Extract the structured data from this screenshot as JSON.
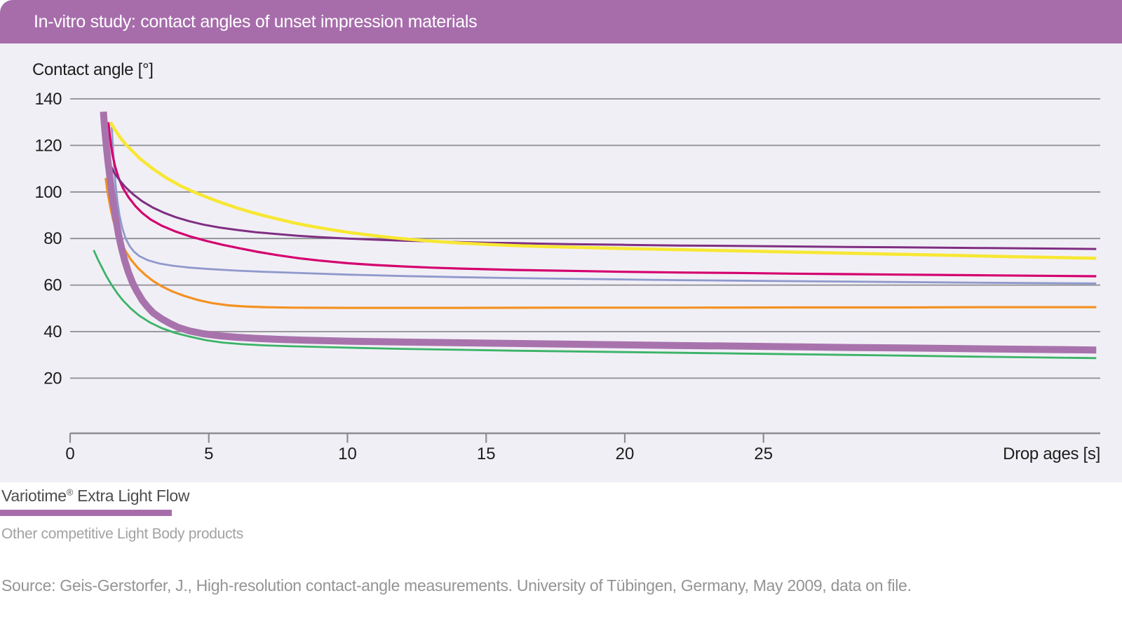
{
  "header": {
    "title": "In-vitro study: contact angles of unset impression materials",
    "bg_color": "#a76dab",
    "text_color": "#ffffff"
  },
  "chart_data": {
    "type": "line",
    "title": "In-vitro study: contact angles of unset impression materials",
    "xlabel": "Drop ages [s]",
    "ylabel": "Contact angle [°]",
    "x_ticks": [
      0,
      5,
      10,
      15,
      20,
      25
    ],
    "y_ticks": [
      140,
      120,
      100,
      80,
      60,
      40,
      20
    ],
    "xlim": [
      0,
      37.1
    ],
    "ylim": [
      0,
      145
    ],
    "grid": "horizontal",
    "legend_position": "below",
    "plot_bg": "#f1eff6",
    "grid_color": "#8d8d91",
    "axis_color": "#8d8d91",
    "tick_label_color": "#1d1d1b",
    "series": [
      {
        "id": "competitor-green",
        "color": "#3bb367",
        "stroke_width": 2.8,
        "points": [
          [
            0.85,
            75
          ],
          [
            1.0,
            71
          ],
          [
            1.15,
            67.5
          ],
          [
            1.3,
            64
          ],
          [
            1.5,
            60
          ],
          [
            1.7,
            56.5
          ],
          [
            1.9,
            53.5
          ],
          [
            2.2,
            49.8
          ],
          [
            2.5,
            46.8
          ],
          [
            2.9,
            43.8
          ],
          [
            3.3,
            41.5
          ],
          [
            3.8,
            39.4
          ],
          [
            4.3,
            37.9
          ],
          [
            4.9,
            36.3
          ],
          [
            5.5,
            35.3
          ],
          [
            6.2,
            34.6
          ],
          [
            7,
            34.1
          ],
          [
            8,
            33.7
          ],
          [
            9,
            33.4
          ],
          [
            10,
            33.1
          ],
          [
            12,
            32.6
          ],
          [
            14,
            32.2
          ],
          [
            16,
            31.8
          ],
          [
            18,
            31.5
          ],
          [
            20,
            31.2
          ],
          [
            22,
            30.9
          ],
          [
            24,
            30.6
          ],
          [
            26,
            30.3
          ],
          [
            28,
            30.0
          ],
          [
            30,
            29.7
          ],
          [
            33,
            29.2
          ],
          [
            37,
            28.6
          ]
        ]
      },
      {
        "id": "competitor-orange",
        "color": "#f39222",
        "stroke_width": 3.2,
        "points": [
          [
            1.28,
            106
          ],
          [
            1.35,
            100
          ],
          [
            1.45,
            93.5
          ],
          [
            1.55,
            88
          ],
          [
            1.7,
            82.5
          ],
          [
            1.85,
            78
          ],
          [
            2.0,
            74.5
          ],
          [
            2.2,
            70.8
          ],
          [
            2.45,
            67.3
          ],
          [
            2.7,
            64.5
          ],
          [
            3.0,
            61.7
          ],
          [
            3.3,
            59.5
          ],
          [
            3.7,
            57.2
          ],
          [
            4.1,
            55.4
          ],
          [
            4.6,
            53.6
          ],
          [
            5.1,
            52.3
          ],
          [
            5.7,
            51.3
          ],
          [
            6.3,
            50.8
          ],
          [
            7,
            50.5
          ],
          [
            8,
            50.3
          ],
          [
            10,
            50.2
          ],
          [
            14,
            50.2
          ],
          [
            18,
            50.3
          ],
          [
            22,
            50.3
          ],
          [
            26,
            50.4
          ],
          [
            30,
            50.4
          ],
          [
            33,
            50.5
          ],
          [
            37,
            50.5
          ]
        ]
      },
      {
        "id": "competitor-periwinkle",
        "color": "#8f99cc",
        "stroke_width": 2.8,
        "points": [
          [
            1.5,
            128
          ],
          [
            1.54,
            120
          ],
          [
            1.58,
            112
          ],
          [
            1.63,
            104
          ],
          [
            1.7,
            96.5
          ],
          [
            1.78,
            90
          ],
          [
            1.88,
            84.5
          ],
          [
            2.0,
            80
          ],
          [
            2.15,
            76.7
          ],
          [
            2.3,
            74.4
          ],
          [
            2.5,
            72.4
          ],
          [
            2.8,
            70.7
          ],
          [
            3.2,
            69.3
          ],
          [
            3.7,
            68.3
          ],
          [
            4.3,
            67.5
          ],
          [
            5,
            66.9
          ],
          [
            6,
            66.2
          ],
          [
            7,
            65.7
          ],
          [
            8,
            65.3
          ],
          [
            10,
            64.5
          ],
          [
            12,
            63.9
          ],
          [
            14,
            63.4
          ],
          [
            16,
            63.0
          ],
          [
            18,
            62.7
          ],
          [
            20,
            62.4
          ],
          [
            22,
            62.1
          ],
          [
            24,
            61.9
          ],
          [
            26,
            61.7
          ],
          [
            28,
            61.5
          ],
          [
            30,
            61.3
          ],
          [
            33,
            61.0
          ],
          [
            37,
            60.7
          ]
        ]
      },
      {
        "id": "competitor-magenta",
        "color": "#d4006e",
        "stroke_width": 3.2,
        "points": [
          [
            1.38,
            130
          ],
          [
            1.44,
            123
          ],
          [
            1.52,
            116.5
          ],
          [
            1.62,
            111
          ],
          [
            1.75,
            106
          ],
          [
            1.9,
            101.8
          ],
          [
            2.1,
            97.8
          ],
          [
            2.35,
            94
          ],
          [
            2.6,
            91
          ],
          [
            2.9,
            88.2
          ],
          [
            3.3,
            85.5
          ],
          [
            3.8,
            83
          ],
          [
            4.3,
            81
          ],
          [
            4.9,
            79
          ],
          [
            5.5,
            77.3
          ],
          [
            6.1,
            75.8
          ],
          [
            6.8,
            74.2
          ],
          [
            7.5,
            72.8
          ],
          [
            8.2,
            71.6
          ],
          [
            9,
            70.5
          ],
          [
            10,
            69.4
          ],
          [
            11,
            68.6
          ],
          [
            12,
            68.0
          ],
          [
            13,
            67.5
          ],
          [
            14,
            67.1
          ],
          [
            16,
            66.5
          ],
          [
            18,
            66.1
          ],
          [
            20,
            65.7
          ],
          [
            22,
            65.4
          ],
          [
            24,
            65.2
          ],
          [
            26,
            64.9
          ],
          [
            28,
            64.7
          ],
          [
            30,
            64.5
          ],
          [
            33,
            64.2
          ],
          [
            37,
            63.8
          ]
        ]
      },
      {
        "id": "competitor-dark-purple",
        "color": "#7f2e82",
        "stroke_width": 3.0,
        "points": [
          [
            1.32,
            115
          ],
          [
            1.45,
            111.5
          ],
          [
            1.6,
            108
          ],
          [
            1.8,
            104.8
          ],
          [
            2.0,
            102
          ],
          [
            2.3,
            98.7
          ],
          [
            2.6,
            96
          ],
          [
            3.0,
            93.2
          ],
          [
            3.4,
            91
          ],
          [
            3.8,
            89.2
          ],
          [
            4.3,
            87.4
          ],
          [
            4.8,
            86
          ],
          [
            5.4,
            84.7
          ],
          [
            6,
            83.7
          ],
          [
            6.7,
            82.7
          ],
          [
            7.4,
            82.0
          ],
          [
            8.2,
            81.2
          ],
          [
            9,
            80.6
          ],
          [
            10,
            80.0
          ],
          [
            11,
            79.5
          ],
          [
            12,
            79.1
          ],
          [
            13,
            78.8
          ],
          [
            14,
            78.5
          ],
          [
            15,
            78.2
          ],
          [
            16,
            78.0
          ],
          [
            18,
            77.6
          ],
          [
            20,
            77.3
          ],
          [
            22,
            77.0
          ],
          [
            24,
            76.8
          ],
          [
            26,
            76.6
          ],
          [
            28,
            76.4
          ],
          [
            30,
            76.2
          ],
          [
            33,
            75.9
          ],
          [
            37,
            75.5
          ]
        ]
      },
      {
        "id": "competitor-yellow",
        "color": "#f7e733",
        "stroke_width": 4.5,
        "points": [
          [
            1.45,
            130
          ],
          [
            1.6,
            127
          ],
          [
            1.8,
            123.5
          ],
          [
            2.0,
            120.5
          ],
          [
            2.5,
            114.5
          ],
          [
            3.0,
            109.8
          ],
          [
            3.5,
            105.8
          ],
          [
            4.0,
            102.5
          ],
          [
            4.5,
            99.8
          ],
          [
            5.0,
            97.4
          ],
          [
            5.5,
            95.2
          ],
          [
            6.0,
            93.2
          ],
          [
            6.5,
            91.4
          ],
          [
            7.0,
            89.8
          ],
          [
            7.5,
            88.3
          ],
          [
            8.0,
            86.9
          ],
          [
            8.5,
            85.7
          ],
          [
            9.0,
            84.6
          ],
          [
            9.5,
            83.6
          ],
          [
            10,
            82.7
          ],
          [
            10.5,
            81.9
          ],
          [
            11,
            81.2
          ],
          [
            11.5,
            80.5
          ],
          [
            12,
            79.9
          ],
          [
            13,
            78.9
          ],
          [
            14,
            78.1
          ],
          [
            15,
            77.5
          ],
          [
            16,
            77.0
          ],
          [
            17,
            76.6
          ],
          [
            18,
            76.3
          ],
          [
            20,
            75.7
          ],
          [
            22,
            75.2
          ],
          [
            24,
            74.7
          ],
          [
            26,
            74.2
          ],
          [
            28,
            73.7
          ],
          [
            30,
            73.2
          ],
          [
            32,
            72.7
          ],
          [
            34,
            72.2
          ],
          [
            37,
            71.5
          ]
        ]
      },
      {
        "id": "variotime-extra-light-flow",
        "color": "#a873ac",
        "stroke_width": 10,
        "points": [
          [
            1.2,
            134.5
          ],
          [
            1.22,
            131
          ],
          [
            1.25,
            127
          ],
          [
            1.28,
            123
          ],
          [
            1.32,
            118
          ],
          [
            1.37,
            112.5
          ],
          [
            1.43,
            106.5
          ],
          [
            1.5,
            100
          ],
          [
            1.58,
            93.5
          ],
          [
            1.66,
            87.5
          ],
          [
            1.75,
            81.5
          ],
          [
            1.85,
            76
          ],
          [
            1.97,
            70.5
          ],
          [
            2.1,
            65.5
          ],
          [
            2.25,
            61
          ],
          [
            2.4,
            57.5
          ],
          [
            2.6,
            53.5
          ],
          [
            2.8,
            50.5
          ],
          [
            3.0,
            48
          ],
          [
            3.3,
            45.5
          ],
          [
            3.6,
            43.5
          ],
          [
            3.9,
            41.8
          ],
          [
            4.3,
            40.3
          ],
          [
            4.8,
            39.1
          ],
          [
            5.4,
            38.2
          ],
          [
            6,
            37.6
          ],
          [
            6.7,
            37.1
          ],
          [
            7.5,
            36.7
          ],
          [
            8.5,
            36.3
          ],
          [
            10,
            35.9
          ],
          [
            11,
            35.7
          ],
          [
            12,
            35.5
          ],
          [
            14,
            35.2
          ],
          [
            16,
            34.9
          ],
          [
            18,
            34.6
          ],
          [
            20,
            34.3
          ],
          [
            22,
            34.0
          ],
          [
            24,
            33.8
          ],
          [
            26,
            33.5
          ],
          [
            28,
            33.2
          ],
          [
            30,
            33.0
          ],
          [
            33,
            32.6
          ],
          [
            37,
            32.1
          ]
        ]
      }
    ]
  },
  "legend": {
    "primary_brand": "Variotime",
    "primary_reg": "®",
    "primary_rest": " Extra Light Flow",
    "underline_color": "#a76dab",
    "secondary": "Other competitive Light Body products"
  },
  "source": "Source: Geis-Gerstorfer, J., High-resolution contact-angle measurements. University of Tübingen, Germany, May 2009, data on file."
}
